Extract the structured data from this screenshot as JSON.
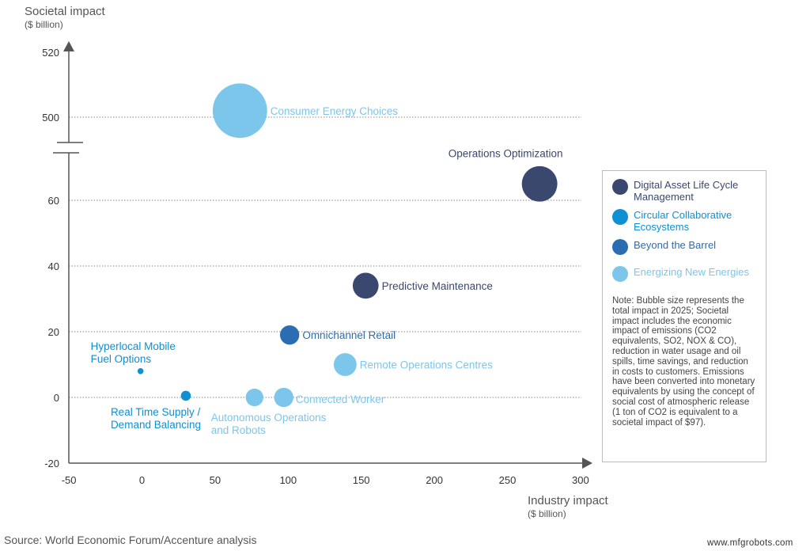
{
  "chart_data": {
    "type": "scatter",
    "subtype": "bubble",
    "ylabel": "Societal impact",
    "ylabel_unit": "($ billion)",
    "xlabel": "Industry impact",
    "xlabel_unit": "($ billion)",
    "xlim": [
      -50,
      300
    ],
    "ylim": [
      -20,
      520
    ],
    "y_axis_break": [
      65,
      495
    ],
    "x_ticks": [
      "-50",
      "0",
      "50",
      "100",
      "150",
      "200",
      "250",
      "300"
    ],
    "y_ticks": [
      "520",
      "500",
      "60",
      "40",
      "20",
      "0",
      "-20"
    ],
    "grid": "dotted horizontal at 0, 20, 40, 60, 500",
    "legend_position": "right",
    "series": [
      {
        "name": "Digital Asset Life Cycle Management",
        "color": "#3a4870"
      },
      {
        "name": "Circular Collaborative Ecosystems",
        "color": "#0e90d2"
      },
      {
        "name": "Beyond the Barrel",
        "color": "#2a6db2"
      },
      {
        "name": "Energizing New Energies",
        "color": "#7cc6ec"
      }
    ],
    "points": [
      {
        "label": [
          "Consumer Energy Choices"
        ],
        "series": 3,
        "x": 67,
        "y": 502,
        "size": 100
      },
      {
        "label": [
          "Operations Optimization"
        ],
        "series": 0,
        "x": 272,
        "y": 65,
        "size": 42
      },
      {
        "label": [
          "Predictive Maintenance"
        ],
        "series": 0,
        "x": 153,
        "y": 34,
        "size": 22
      },
      {
        "label": [
          "Omnichannel Retail"
        ],
        "series": 2,
        "x": 101,
        "y": 19,
        "size": 12
      },
      {
        "label": [
          "Remote Operations Centres"
        ],
        "series": 3,
        "x": 139,
        "y": 10,
        "size": 17
      },
      {
        "label": [
          "Connected Worker"
        ],
        "series": 3,
        "x": 97,
        "y": 0,
        "size": 12
      },
      {
        "label": [
          "Autonomous Operations",
          "and Robots"
        ],
        "series": 3,
        "x": 77,
        "y": 0,
        "size": 10
      },
      {
        "label": [
          "Hyperlocal Mobile",
          "Fuel Options"
        ],
        "series": 1,
        "x": -1,
        "y": 8,
        "size": 1
      },
      {
        "label": [
          "Real Time Supply /",
          "Demand Balancing"
        ],
        "series": 1,
        "x": 30,
        "y": 0.5,
        "size": 3
      }
    ],
    "note": "Note: Bubble size represents the total impact in 2025; Societal impact includes the economic impact of emissions (CO2 equivalents, SO2, NOX & CO), reduction in water usage and oil spills, time savings, and reduction in costs to customers. Emissions have been converted into monetary equivalents by using the concept of social cost of atmospheric release (1 ton of CO2 is equivalent to a societal impact of $97)."
  },
  "source": "Source: World Economic Forum/Accenture analysis",
  "watermark": "www.mfgrobots.com"
}
